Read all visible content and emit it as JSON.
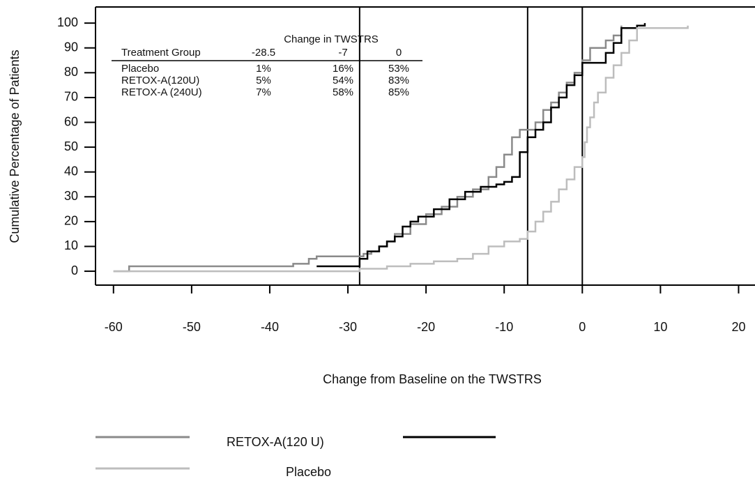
{
  "chart_data": {
    "type": "step",
    "xlabel": "Change from Baseline on the TWSTRS",
    "ylabel": "Cumulative Percentage of Patients",
    "xlim": [
      -62.3,
      22.1
    ],
    "ylim": [
      -5.6,
      106.5
    ],
    "xticks": [
      -60,
      -50,
      -40,
      -30,
      -20,
      -10,
      0,
      10,
      20
    ],
    "yticks": [
      0,
      10,
      20,
      30,
      40,
      50,
      60,
      70,
      80,
      90,
      100
    ],
    "vlines": [
      -28.5,
      -7,
      0
    ],
    "table": {
      "title": "Change in TWSTRS",
      "columns": [
        "Treatment Group",
        "-28.5",
        "-7",
        "0"
      ],
      "rows": [
        [
          "Placebo",
          "1%",
          "16%",
          "53%"
        ],
        [
          "RETOX-A(120U)",
          "5%",
          "54%",
          "83%"
        ],
        [
          "RETOX-A (240U)",
          "7%",
          "58%",
          "85%"
        ]
      ]
    },
    "series": [
      {
        "color": "#8a8a8a",
        "x": [
          -60,
          -58,
          -37,
          -35,
          -34,
          -28,
          -27,
          -26,
          -25,
          -24,
          -22,
          -20,
          -18,
          -16,
          -14,
          -12,
          -11,
          -10,
          -9,
          -8,
          -6,
          -5,
          -4,
          -3,
          -2,
          -1,
          0,
          1,
          3,
          4,
          5
        ],
        "values": [
          0,
          2,
          3,
          5,
          6,
          7,
          8,
          10,
          12,
          15,
          19,
          23,
          26,
          30,
          33,
          38,
          42,
          47,
          54,
          57,
          60,
          65,
          68,
          72,
          76,
          80,
          85,
          90,
          93,
          95,
          99
        ]
      },
      {
        "name": "RETOX-A(120 U)",
        "color": "#000000",
        "x": [
          -34,
          -28.5,
          -27.5,
          -26,
          -25,
          -24,
          -23,
          -22,
          -21,
          -19,
          -17,
          -15,
          -13,
          -11,
          -10,
          -9,
          -8,
          -7,
          -6,
          -5,
          -4,
          -3,
          -2,
          -1,
          0,
          3,
          4,
          5,
          7,
          8
        ],
        "values": [
          2,
          5,
          8,
          10,
          12,
          14,
          18,
          20,
          22,
          25,
          29,
          32,
          34,
          35,
          36,
          38,
          48,
          54,
          57,
          60,
          66,
          70,
          75,
          79,
          84,
          88,
          92,
          98,
          99,
          100
        ]
      },
      {
        "name": "Placebo",
        "color": "#bdbdbd",
        "x": [
          -60,
          -28.5,
          -25,
          -22,
          -19,
          -16,
          -14,
          -12,
          -10,
          -8,
          -7,
          -6,
          -5,
          -4,
          -3,
          -2,
          -1,
          0,
          0.3,
          0.6,
          1,
          1.5,
          2,
          3,
          4,
          5,
          6,
          7,
          13.5
        ],
        "values": [
          0,
          1,
          2,
          3,
          4,
          5,
          7,
          10,
          12,
          13,
          16,
          20,
          24,
          28,
          33,
          37,
          42,
          46,
          52,
          58,
          62,
          68,
          72,
          78,
          83,
          88,
          93,
          98,
          99
        ]
      }
    ]
  }
}
